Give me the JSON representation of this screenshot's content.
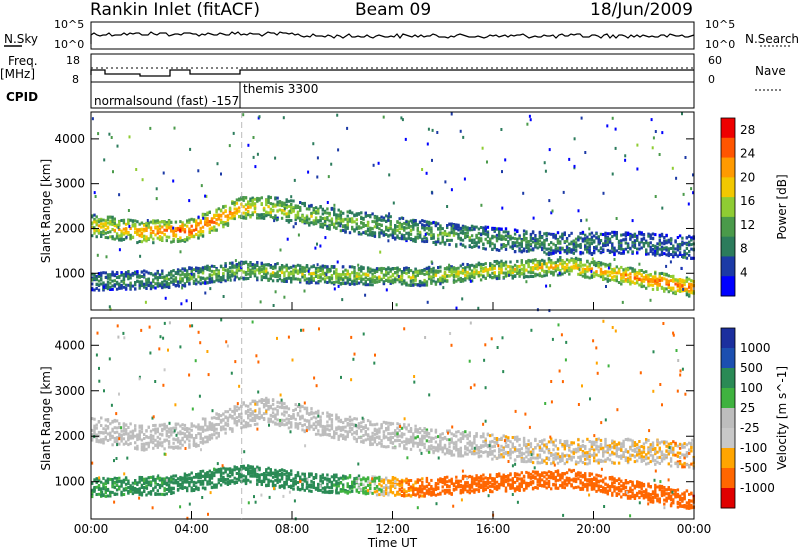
{
  "header": {
    "station": "Rankin Inlet (fitACF)",
    "beam": "Beam 09",
    "date": "18/Jun/2009"
  },
  "params": {
    "nsky_label": "N.Sky",
    "nsky_ticks": [
      "10^5",
      "10^0"
    ],
    "nsearch_label": "N.Search",
    "nsearch_ticks": [
      "10^5",
      "10^0"
    ],
    "freq_label": "Freq.",
    "freq_unit": "[MHz]",
    "freq_ticks": [
      "18",
      "8"
    ],
    "nave_label": "Nave",
    "nave_ticks": [
      "60",
      "0"
    ],
    "cpid_label": "CPID",
    "cpid_modes": [
      "normalsound (fast) -157",
      "themis 3300"
    ]
  },
  "colors": {
    "power_scale": [
      "#0000ff",
      "#1c3aa6",
      "#2c7c5c",
      "#4a9a4a",
      "#8fcc33",
      "#f2c800",
      "#ff9a00",
      "#ff5500",
      "#ee0000"
    ],
    "velocity_scale": [
      "#1c2f9e",
      "#1c4fb0",
      "#2a8a55",
      "#3fb23f",
      "#bdbdbd",
      "#c8c8c8",
      "#ffa500",
      "#ff6600",
      "#e00000"
    ],
    "ground_scatter": "#bdbdbd"
  },
  "chart_data": [
    {
      "type": "heatmap",
      "title": "Power",
      "xlabel": "",
      "ylabel": "Slant Range [km]",
      "x_ticks": [
        "00:00",
        "04:00",
        "08:00",
        "12:00",
        "16:00",
        "20:00",
        "00:00"
      ],
      "xlim_hours": [
        0,
        24
      ],
      "y_ticks": [
        1000,
        2000,
        3000,
        4000
      ],
      "ylim": [
        180,
        4600
      ],
      "colorbar": {
        "label": "Power [dB]",
        "ticks": [
          4,
          8,
          12,
          16,
          20,
          24,
          28
        ],
        "range": [
          0,
          30
        ]
      },
      "echo_bands": [
        {
          "name": "upper",
          "centers": [
            [
              0,
              2100
            ],
            [
              2,
              1950
            ],
            [
              4,
              2000
            ],
            [
              6,
              2500
            ],
            [
              7,
              2500
            ],
            [
              10,
              2200
            ],
            [
              14,
              1900
            ],
            [
              18,
              1700
            ],
            [
              22,
              1700
            ],
            [
              24,
              1600
            ]
          ],
          "width": 500,
          "peak_power": [
            18,
            22,
            26,
            22,
            18,
            14,
            12,
            10,
            8,
            8
          ]
        },
        {
          "name": "lower",
          "centers": [
            [
              0,
              850
            ],
            [
              3,
              900
            ],
            [
              6,
              1100
            ],
            [
              9,
              1000
            ],
            [
              13,
              950
            ],
            [
              16,
              1100
            ],
            [
              19,
              1200
            ],
            [
              22,
              900
            ],
            [
              24,
              700
            ]
          ],
          "width": 400,
          "peak_power": [
            10,
            12,
            14,
            16,
            16,
            18,
            20,
            24,
            24
          ]
        }
      ],
      "grid": false,
      "legend": "colorbar-right"
    },
    {
      "type": "heatmap",
      "title": "Velocity",
      "xlabel": "Time UT",
      "ylabel": "Slant Range [km]",
      "x_ticks": [
        "00:00",
        "04:00",
        "08:00",
        "12:00",
        "16:00",
        "20:00",
        "00:00"
      ],
      "xlim_hours": [
        0,
        24
      ],
      "y_ticks": [
        1000,
        2000,
        3000,
        4000
      ],
      "ylim": [
        180,
        4600
      ],
      "colorbar": {
        "label": "Velocity [m s^-1]",
        "ticks": [
          1000,
          500,
          100,
          25,
          -25,
          -100,
          -500,
          -1000
        ]
      },
      "echo_bands": [
        {
          "name": "upper",
          "centers": [
            [
              0,
              2200
            ],
            [
              2,
              2000
            ],
            [
              4,
              2050
            ],
            [
              6,
              2500
            ],
            [
              7,
              2600
            ],
            [
              10,
              2200
            ],
            [
              14,
              1900
            ],
            [
              18,
              1700
            ],
            [
              22,
              1700
            ],
            [
              24,
              1600
            ]
          ],
          "width": 550,
          "velocity": [
            0,
            0,
            0,
            0,
            0,
            0,
            10,
            -30,
            -40,
            -60
          ]
        },
        {
          "name": "lower",
          "centers": [
            [
              0,
              900
            ],
            [
              3,
              950
            ],
            [
              6,
              1200
            ],
            [
              9,
              1000
            ],
            [
              13,
              900
            ],
            [
              16,
              1000
            ],
            [
              19,
              1100
            ],
            [
              22,
              800
            ],
            [
              24,
              600
            ]
          ],
          "width": 400,
          "velocity": [
            120,
            150,
            200,
            200,
            -150,
            -250,
            -350,
            -400,
            -450
          ]
        }
      ],
      "grid": false,
      "legend": "colorbar-right"
    }
  ]
}
